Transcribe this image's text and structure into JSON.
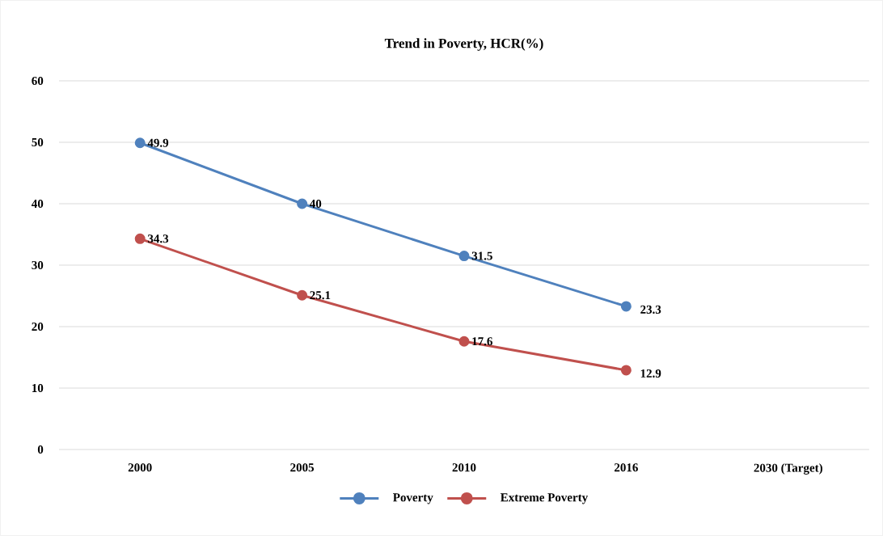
{
  "chart_data": {
    "type": "line",
    "title": "Trend in Poverty, HCR(%)",
    "categories": [
      "2000",
      "2005",
      "2010",
      "2016",
      "2030 (Target)"
    ],
    "series": [
      {
        "name": "Poverty",
        "color": "#4f81bd",
        "values": [
          49.9,
          40,
          31.5,
          23.3,
          null
        ]
      },
      {
        "name": "Extreme Poverty",
        "color": "#c0504d",
        "values": [
          34.3,
          25.1,
          17.6,
          12.9,
          null
        ]
      }
    ],
    "ylim": [
      0,
      60
    ],
    "yticks": [
      0,
      10,
      20,
      30,
      40,
      50,
      60
    ],
    "grid": "y",
    "legend": "bottom",
    "data_labels": true,
    "marker": "circle",
    "line_style": "solid"
  }
}
